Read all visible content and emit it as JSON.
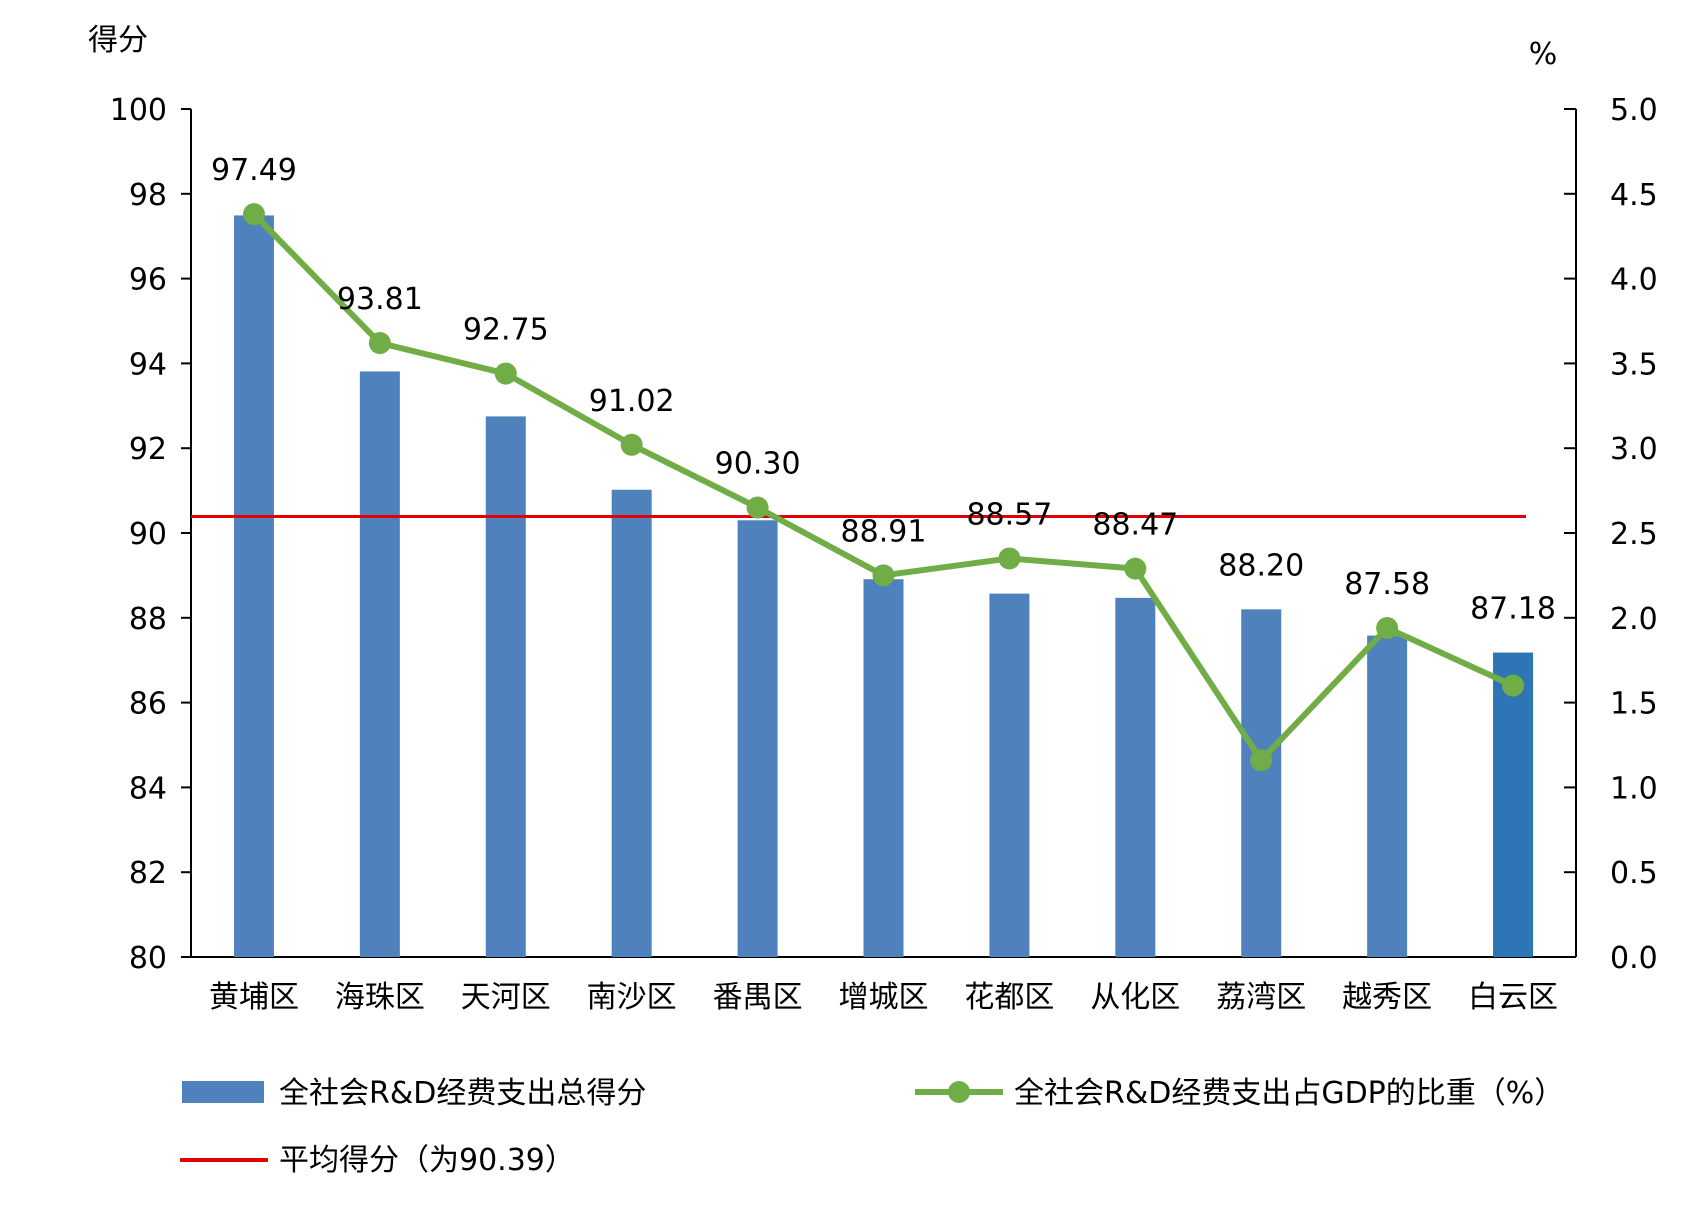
{
  "chart_data": {
    "type": "bar",
    "categories": [
      "黄埔区",
      "海珠区",
      "天河区",
      "南沙区",
      "番禺区",
      "增城区",
      "花都区",
      "从化区",
      "荔湾区",
      "越秀区",
      "白云区"
    ],
    "series": [
      {
        "name": "全社会R&D经费支出总得分",
        "type": "bar",
        "axis": "left",
        "color": "#4f81bd",
        "highlight_color": "#2e75b6",
        "values": [
          97.49,
          93.81,
          92.75,
          91.02,
          90.3,
          88.91,
          88.57,
          88.47,
          88.2,
          87.58,
          87.18
        ],
        "labels": [
          "97.49",
          "93.81",
          "92.75",
          "91.02",
          "90.30",
          "88.91",
          "88.57",
          "88.47",
          "88.20",
          "87.58",
          "87.18"
        ]
      },
      {
        "name": "全社会R&D经费支出占GDP的比重（%）",
        "type": "line",
        "axis": "right",
        "color": "#70ad47",
        "marker": "circle",
        "values": [
          4.38,
          3.62,
          3.44,
          3.02,
          2.65,
          2.25,
          2.35,
          2.29,
          1.16,
          1.94,
          1.6
        ]
      },
      {
        "name": "平均得分（为90.39）",
        "type": "reference-line",
        "axis": "left",
        "color": "#e00000",
        "value": 90.39
      }
    ],
    "y_left": {
      "title": "得分",
      "range": [
        80,
        100
      ],
      "ticks": [
        "80",
        "82",
        "84",
        "86",
        "88",
        "90",
        "92",
        "94",
        "96",
        "98",
        "100"
      ]
    },
    "y_right": {
      "title": "%",
      "range": [
        0.0,
        5.0
      ],
      "ticks": [
        "0.0",
        "0.5",
        "1.0",
        "1.5",
        "2.0",
        "2.5",
        "3.0",
        "3.5",
        "4.0",
        "4.5",
        "5.0"
      ]
    },
    "grid": false,
    "legend_position": "bottom"
  }
}
